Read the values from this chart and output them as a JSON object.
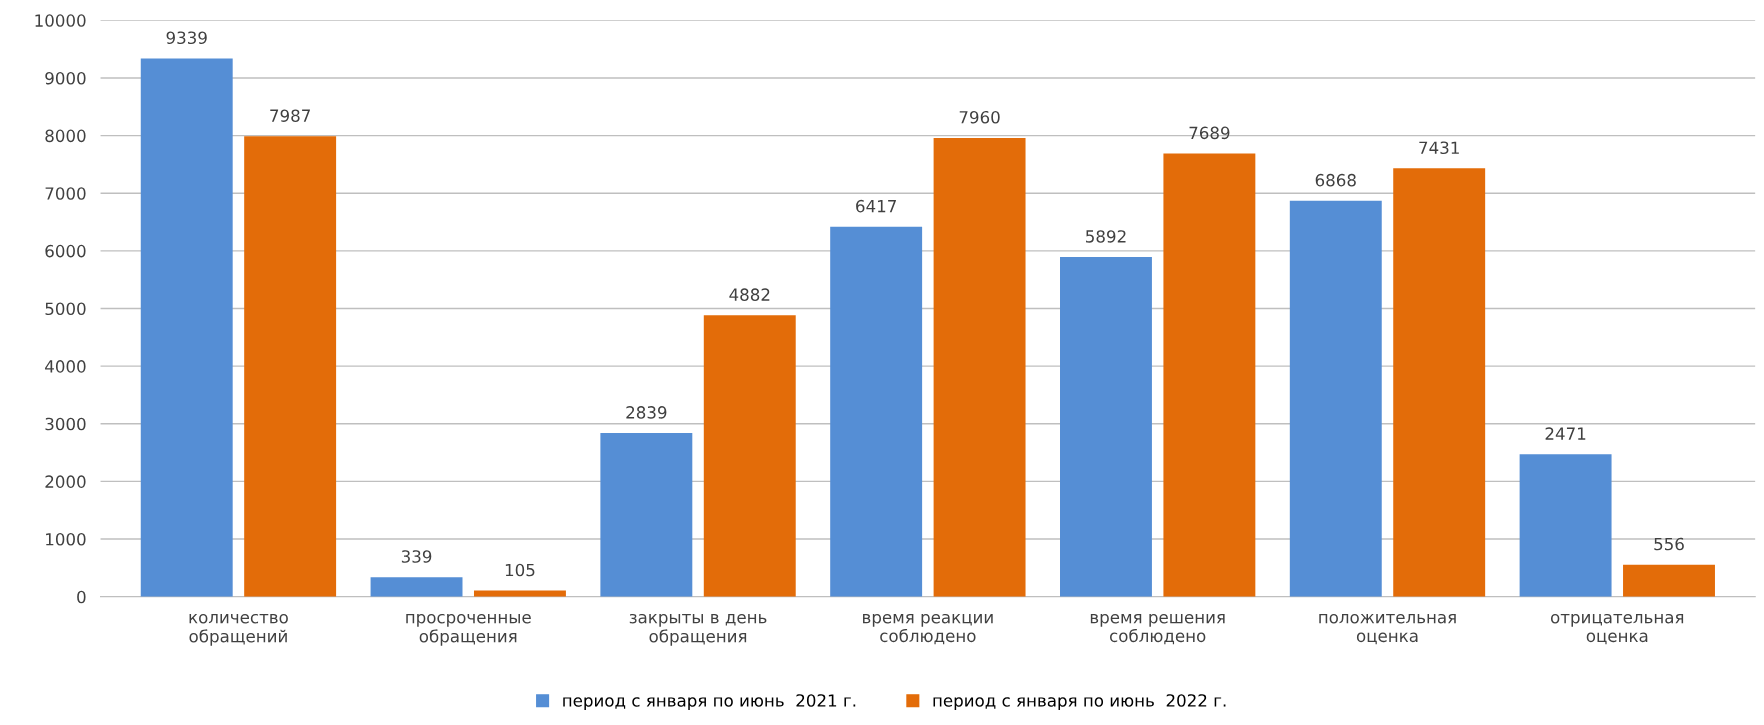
{
  "chart_data": {
    "type": "bar",
    "categories": [
      "количество\nобращений",
      "просроченные\nобращения",
      "закрыты в день\nобращения",
      "время реакции\nсоблюдено",
      "время решения\nсоблюдено",
      "положительная\nоценка",
      "отрицательная\nоценка"
    ],
    "series": [
      {
        "name": "период с января по июнь  2021 г.",
        "color": "#558ed5",
        "values": [
          9339,
          339,
          2839,
          6417,
          5892,
          6868,
          2471
        ]
      },
      {
        "name": "период с января по июнь  2022 г.",
        "color": "#e36c09",
        "values": [
          7987,
          105,
          4882,
          7960,
          7689,
          7431,
          556
        ]
      }
    ],
    "ylim": [
      0,
      10000
    ],
    "yticks": [
      0,
      1000,
      2000,
      3000,
      4000,
      5000,
      6000,
      7000,
      8000,
      9000,
      10000
    ],
    "grid": "y",
    "legend": "bottom",
    "data_labels": true
  }
}
